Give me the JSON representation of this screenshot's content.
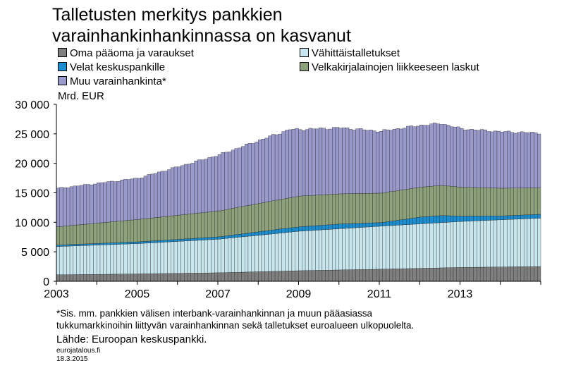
{
  "title_line1": "Talletusten merkitys pankkien",
  "title_line2": "varainhankinhankinnassa on kasvanut",
  "chart_data": {
    "type": "bar",
    "stacked": true,
    "unit_label": "Mrd. EUR",
    "ylim": [
      0,
      30000
    ],
    "y_ticks": [
      "0",
      "5 000",
      "10 000",
      "15 000",
      "20 000",
      "25 000",
      "30 000"
    ],
    "x_ticks": [
      "2003",
      "2005",
      "2007",
      "2009",
      "2011",
      "2013"
    ],
    "x_range": [
      "2003-01",
      "2014-12"
    ],
    "grid": false,
    "legend_position": "top",
    "series": [
      {
        "name": "Oma pääoma ja varaukset",
        "color": "#7f7f7f",
        "anchors": [
          [
            2003,
            1100
          ],
          [
            2005,
            1250
          ],
          [
            2007,
            1450
          ],
          [
            2009,
            1800
          ],
          [
            2011,
            2050
          ],
          [
            2013,
            2350
          ],
          [
            2014.92,
            2500
          ]
        ]
      },
      {
        "name": "Vähittäistalletukset",
        "color": "#c8e6ee",
        "anchors": [
          [
            2003,
            4800
          ],
          [
            2005,
            5150
          ],
          [
            2007,
            5700
          ],
          [
            2009,
            6700
          ],
          [
            2011,
            7300
          ],
          [
            2013,
            7800
          ],
          [
            2014.92,
            8200
          ]
        ]
      },
      {
        "name": "Velat keskuspankille",
        "color": "#1b8fd2",
        "anchors": [
          [
            2003,
            250
          ],
          [
            2005,
            300
          ],
          [
            2007,
            400
          ],
          [
            2008.5,
            700
          ],
          [
            2009,
            750
          ],
          [
            2010,
            800
          ],
          [
            2011,
            600
          ],
          [
            2012,
            1150
          ],
          [
            2012.5,
            1200
          ],
          [
            2013,
            900
          ],
          [
            2014,
            650
          ],
          [
            2014.92,
            650
          ]
        ]
      },
      {
        "name": "Velkakirjalainojen liikkeeseen laskut",
        "color": "#8da17b",
        "anchors": [
          [
            2003,
            3100
          ],
          [
            2005,
            3800
          ],
          [
            2007,
            4400
          ],
          [
            2009,
            5200
          ],
          [
            2011,
            5000
          ],
          [
            2012.5,
            5100
          ],
          [
            2013,
            4900
          ],
          [
            2014.92,
            4500
          ]
        ]
      },
      {
        "name": "Muu varainhankinta*",
        "color": "#9999cc",
        "anchors": [
          [
            2003,
            6500
          ],
          [
            2005,
            7000
          ],
          [
            2007,
            9500
          ],
          [
            2008.75,
            11600
          ],
          [
            2009,
            11300
          ],
          [
            2010,
            11200
          ],
          [
            2011,
            10500
          ],
          [
            2012.5,
            10500
          ],
          [
            2013,
            9900
          ],
          [
            2014.92,
            9300
          ]
        ]
      }
    ]
  },
  "legend_rows": [
    [
      "Oma pääoma ja varaukset",
      "Vähittäistalletukset"
    ],
    [
      "Velat keskuspankille",
      "Velkakirjalainojen liikkeeseen laskut"
    ],
    [
      "Muu varainhankinta*"
    ]
  ],
  "note_line1": "*Sis. mm. pankkien välisen interbank-varainhankinnan ja muun pääasiassa",
  "note_line2": "tukkumarkkinoihin liittyvän varainhankinnan sekä talletukset euroalueen ulkopuolelta.",
  "source": "Lähde: Euroopan keskuspankki.",
  "site": "eurojatalous.fi",
  "date": "18.3.2015"
}
